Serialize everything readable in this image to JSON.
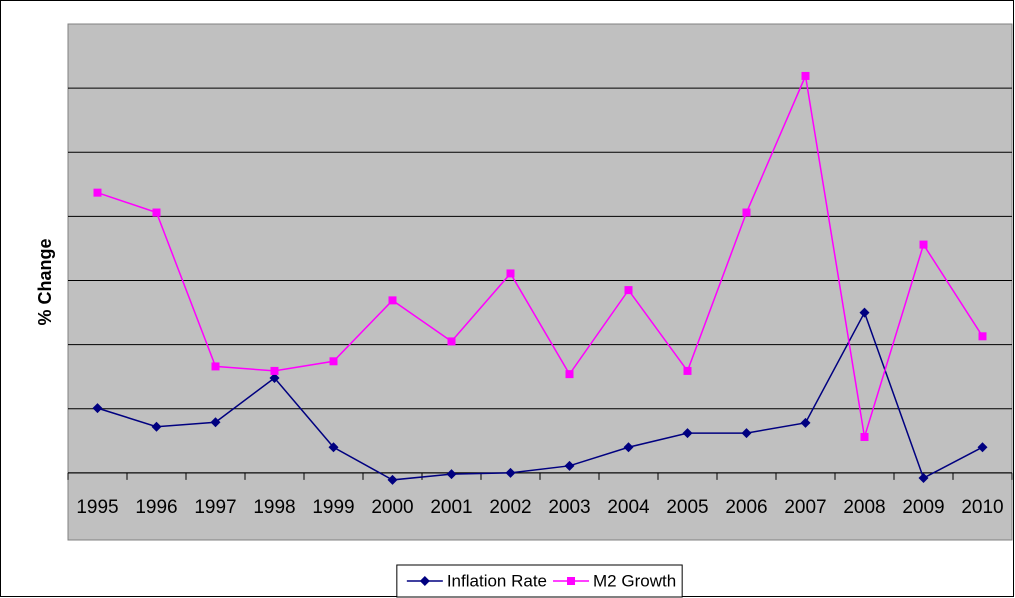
{
  "chart_data": {
    "type": "line",
    "y_label": "% Change",
    "categories": [
      "1995",
      "1996",
      "1997",
      "1998",
      "1999",
      "2000",
      "2001",
      "2002",
      "2003",
      "2004",
      "2005",
      "2006",
      "2007",
      "2008",
      "2009",
      "2010"
    ],
    "series": [
      {
        "name": "Inflation Rate",
        "color": "#000080",
        "marker": "diamond",
        "values": [
          1.01,
          0.72,
          0.79,
          1.48,
          0.4,
          -0.11,
          -0.02,
          0.0,
          0.11,
          0.4,
          0.62,
          0.62,
          0.78,
          2.5,
          -0.08,
          0.4
        ]
      },
      {
        "name": "M2 Growth",
        "color": "#ff00ff",
        "marker": "square",
        "values": [
          4.37,
          4.06,
          1.66,
          1.59,
          1.74,
          2.69,
          2.05,
          3.11,
          1.54,
          2.85,
          1.59,
          4.06,
          6.19,
          0.56,
          3.56,
          2.13
        ]
      }
    ],
    "ylim": [
      -1,
      7
    ],
    "yticks": [
      0,
      1,
      2,
      3,
      4,
      5,
      6
    ],
    "grid": true,
    "plot_background": "#c0c0c0",
    "legend": "bottom"
  }
}
